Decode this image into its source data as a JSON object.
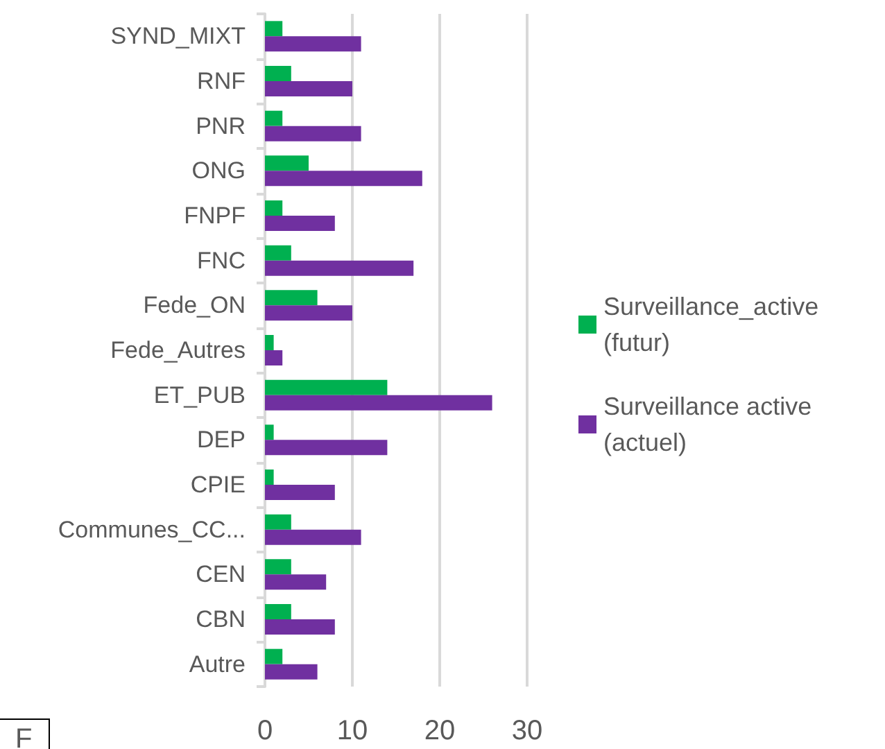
{
  "chart_data": {
    "type": "bar",
    "orientation": "horizontal",
    "categories": [
      "SYND_MIXT",
      "RNF",
      "PNR",
      "ONG",
      "FNPF",
      "FNC",
      "Fede_ON",
      "Fede_Autres",
      "ET_PUB",
      "DEP",
      "CPIE",
      "Communes_CC...",
      "CEN",
      "CBN",
      "Autre"
    ],
    "series": [
      {
        "name": "Surveillance_active (futur)",
        "color": "#00b050",
        "values": [
          2,
          3,
          2,
          5,
          2,
          3,
          6,
          1,
          14,
          1,
          1,
          3,
          3,
          3,
          2
        ]
      },
      {
        "name": "Surveillance active (actuel)",
        "color": "#7030a0",
        "values": [
          11,
          10,
          11,
          18,
          8,
          17,
          10,
          2,
          26,
          14,
          8,
          11,
          7,
          8,
          6
        ]
      }
    ],
    "xlim": [
      0,
      30
    ],
    "xticks": [
      0,
      10,
      20,
      30
    ],
    "grid": "x",
    "legend": "right",
    "annotations": [
      "F"
    ]
  }
}
